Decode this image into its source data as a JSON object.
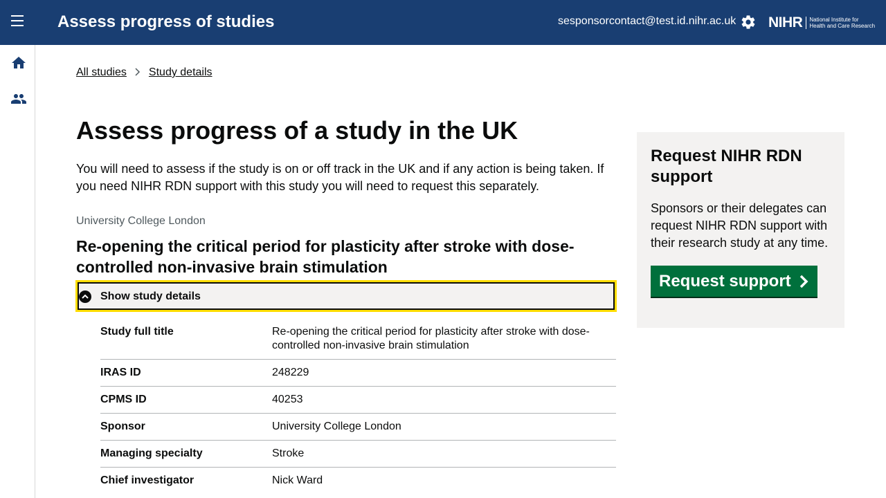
{
  "header": {
    "title": "Assess progress of studies",
    "user_email": "sesponsorcontact@test.id.nihr.ac.uk",
    "logo_mark": "NIHR",
    "logo_sub_line1": "National Institute for",
    "logo_sub_line2": "Health and Care Research"
  },
  "breadcrumb": {
    "items": [
      "All studies",
      "Study details"
    ]
  },
  "main": {
    "title": "Assess progress of a study in the UK",
    "intro": "You will need to assess if the study is on or off track in the UK and if any action is being taken. If you need NIHR RDN support with this study you will need to request this separately.",
    "organisation": "University College London",
    "study_title": "Re-opening the critical period for plasticity after stroke with dose-controlled non-invasive brain stimulation",
    "toggle_label": "Show study details",
    "details": [
      {
        "key": "Study full title",
        "value": "Re-opening the critical period for plasticity after stroke with dose-controlled non-invasive brain stimulation"
      },
      {
        "key": "IRAS ID",
        "value": "248229"
      },
      {
        "key": "CPMS ID",
        "value": "40253"
      },
      {
        "key": "Sponsor",
        "value": "University College London"
      },
      {
        "key": "Managing specialty",
        "value": "Stroke"
      },
      {
        "key": "Chief investigator",
        "value": "Nick Ward"
      }
    ]
  },
  "aside": {
    "title": "Request NIHR RDN support",
    "body": "Sponsors or their delegates can request NIHR RDN support with their research study at any time.",
    "button_label": "Request support"
  },
  "colors": {
    "header_bg": "#193e72",
    "focus_yellow": "#ffdd00",
    "button_green": "#00703c",
    "panel_grey": "#f3f2f1"
  },
  "icons": {
    "menu": "hamburger-menu-icon",
    "settings": "gear-icon",
    "home": "home-icon",
    "users": "people-icon",
    "toggle": "chevron-up-circle-icon",
    "chevron": "chevron-right-icon"
  }
}
